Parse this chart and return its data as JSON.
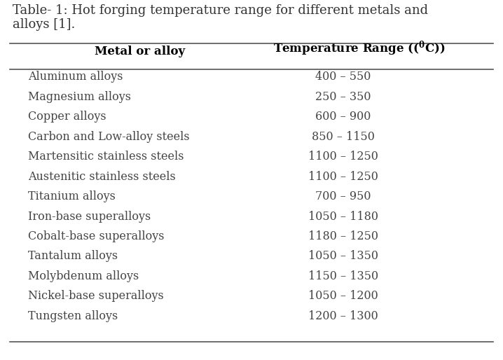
{
  "title_line1": "Table- 1: Hot forging temperature range for different metals and",
  "title_line2": "alloys [1].",
  "col1_header": "Metal or alloy",
  "col2_header": "Temperature Range (",
  "col2_header_sup": "0",
  "col2_header_end": "C)",
  "rows": [
    [
      "Aluminum alloys",
      "400 – 550"
    ],
    [
      "Magnesium alloys",
      "250 – 350"
    ],
    [
      "Copper alloys",
      "600 – 900"
    ],
    [
      "Carbon and Low-alloy steels",
      "850 – 1150"
    ],
    [
      "Martensitic stainless steels",
      "1100 – 1250"
    ],
    [
      "Austenitic stainless steels",
      "1100 – 1250"
    ],
    [
      "Titanium alloys",
      "700 – 950"
    ],
    [
      "Iron-base superalloys",
      "1050 – 1180"
    ],
    [
      "Cobalt-base superalloys",
      "1180 – 1250"
    ],
    [
      "Tantalum alloys",
      "1050 – 1350"
    ],
    [
      "Molybdenum alloys",
      "1150 – 1350"
    ],
    [
      "Nickel-base superalloys",
      "1050 – 1200"
    ],
    [
      "Tungsten alloys",
      "1200 – 1300"
    ]
  ],
  "bg_color": "#ffffff",
  "font_size_title": 13.0,
  "font_size_header": 12.0,
  "font_size_body": 11.5,
  "title_color": "#333333",
  "body_color": "#444444"
}
